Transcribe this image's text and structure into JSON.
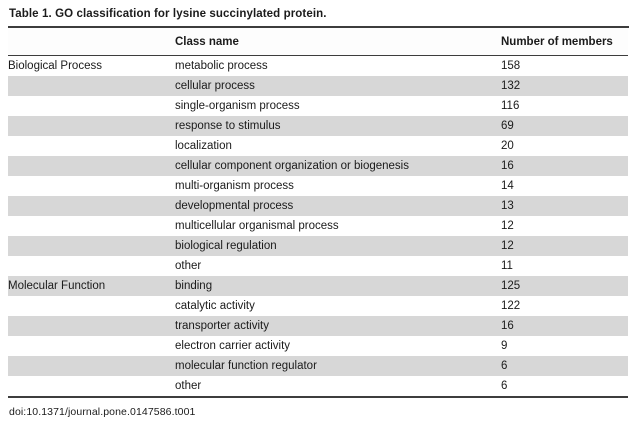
{
  "table": {
    "title": "Table 1.  GO classification for lysine succinylated protein.",
    "columns": {
      "group": "",
      "class_name": "Class name",
      "members": "Number of members"
    },
    "rows": [
      {
        "group": "Biological Process",
        "class_name": "metabolic process",
        "members": "158"
      },
      {
        "group": "",
        "class_name": "cellular process",
        "members": "132"
      },
      {
        "group": "",
        "class_name": "single-organism process",
        "members": "116"
      },
      {
        "group": "",
        "class_name": "response to stimulus",
        "members": "69"
      },
      {
        "group": "",
        "class_name": "localization",
        "members": "20"
      },
      {
        "group": "",
        "class_name": "cellular component organization or biogenesis",
        "members": "16"
      },
      {
        "group": "",
        "class_name": "multi-organism process",
        "members": "14"
      },
      {
        "group": "",
        "class_name": "developmental process",
        "members": "13"
      },
      {
        "group": "",
        "class_name": "multicellular organismal process",
        "members": "12"
      },
      {
        "group": "",
        "class_name": "biological regulation",
        "members": "12"
      },
      {
        "group": "",
        "class_name": "other",
        "members": "11"
      },
      {
        "group": "Molecular Function",
        "class_name": "binding",
        "members": "125"
      },
      {
        "group": "",
        "class_name": "catalytic activity",
        "members": "122"
      },
      {
        "group": "",
        "class_name": "transporter activity",
        "members": "16"
      },
      {
        "group": "",
        "class_name": "electron carrier activity",
        "members": "9"
      },
      {
        "group": "",
        "class_name": "molecular function regulator",
        "members": "6"
      },
      {
        "group": "",
        "class_name": "other",
        "members": "6"
      }
    ],
    "footer": "doi:10.1371/journal.pone.0147586.t001"
  },
  "colors": {
    "stripe": "#d7d7d7",
    "rule": "#3d3d3d",
    "text": "#1b1b1b"
  }
}
